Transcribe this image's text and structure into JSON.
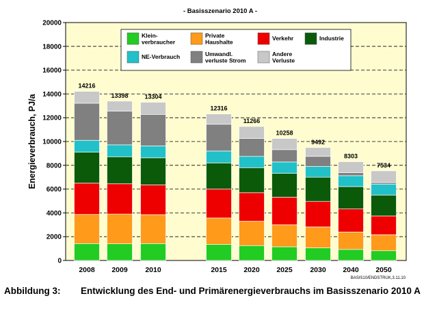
{
  "chart_data": {
    "type": "bar",
    "stacked": true,
    "title": "- Basisszenario 2010 A -",
    "ylabel": "Energieverbrauch, PJ/a",
    "xlabel": "",
    "ylim": [
      0,
      20000
    ],
    "yticks": [
      0,
      2000,
      4000,
      6000,
      8000,
      10000,
      12000,
      14000,
      16000,
      18000,
      20000
    ],
    "grid": "horizontal-dashed",
    "legend_position": "top-right",
    "categories": [
      "2008",
      "2009",
      "2010",
      "2015",
      "2020",
      "2025",
      "2030",
      "2040",
      "2050"
    ],
    "totals": [
      "14216",
      "13398",
      "13304",
      "12316",
      "11266",
      "10258",
      "9492",
      "8303",
      "7534"
    ],
    "series": [
      {
        "name": "Klein-\nverbraucher",
        "color": "#22cc22",
        "values": [
          1420,
          1400,
          1420,
          1350,
          1250,
          1150,
          1060,
          930,
          820
        ]
      },
      {
        "name": "Private\nHaushalte",
        "color": "#ff9a1a",
        "values": [
          2450,
          2500,
          2430,
          2220,
          2050,
          1850,
          1760,
          1460,
          1340
        ]
      },
      {
        "name": "Verkehr",
        "color": "#ee0000",
        "values": [
          2630,
          2550,
          2500,
          2430,
          2400,
          2320,
          2140,
          1940,
          1580
        ]
      },
      {
        "name": "Industrie",
        "color": "#0a5a0a",
        "values": [
          2600,
          2270,
          2280,
          2200,
          2100,
          2000,
          2040,
          1880,
          1760
        ]
      },
      {
        "name": "NE-Verbrauch",
        "color": "#22c0c8",
        "values": [
          1000,
          1000,
          1000,
          1000,
          950,
          960,
          900,
          920,
          920
        ]
      },
      {
        "name": "Umwandl.\nverluste Strom",
        "color": "#808080",
        "values": [
          3120,
          2830,
          2650,
          2250,
          1500,
          1040,
          850,
          250,
          130
        ]
      },
      {
        "name": "Andere\nVerluste",
        "color": "#c8c8c8",
        "values": [
          996,
          848,
          1024,
          866,
          1016,
          938,
          742,
          923,
          984
        ]
      }
    ]
  },
  "footnote": "BASIS10/ENDSTRUK,3.11.10",
  "caption": {
    "number": "Abbildung 3:",
    "text": "Entwicklung des End- und Primärenergieverbrauchs im Basisszenario 2010 A"
  }
}
